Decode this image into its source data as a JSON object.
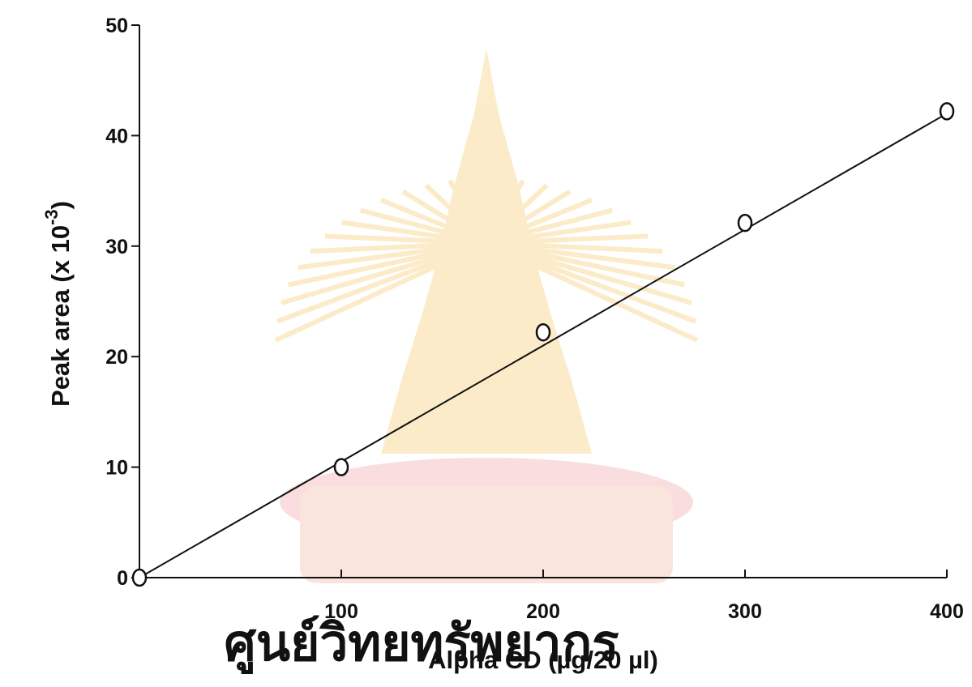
{
  "chart_data": {
    "type": "scatter",
    "title": "",
    "xlabel": "Alpha CD (µg/20 µl)",
    "ylabel": {
      "main": "Peak area (x 10",
      "superscript": "-3",
      "close": ")"
    },
    "xlim": [
      0,
      400
    ],
    "ylim": [
      0,
      50
    ],
    "x_ticks": [
      100,
      200,
      300,
      400
    ],
    "y_ticks": [
      0,
      10,
      20,
      30,
      40,
      50
    ],
    "grid": false,
    "marker": "open-circle",
    "series": [
      {
        "x": [
          0,
          100,
          200,
          300,
          400
        ],
        "y": [
          0,
          10,
          22.2,
          32.1,
          42.2
        ]
      }
    ],
    "fit_line": {
      "x": [
        0,
        400
      ],
      "y": [
        0,
        42.0
      ]
    }
  },
  "watermark": {
    "text": "ศูนย์วิทยทรัพยากร",
    "color": "#f0b8bb",
    "emblem_color": "#f7d48a"
  },
  "colors": {
    "ink": "#111111"
  }
}
